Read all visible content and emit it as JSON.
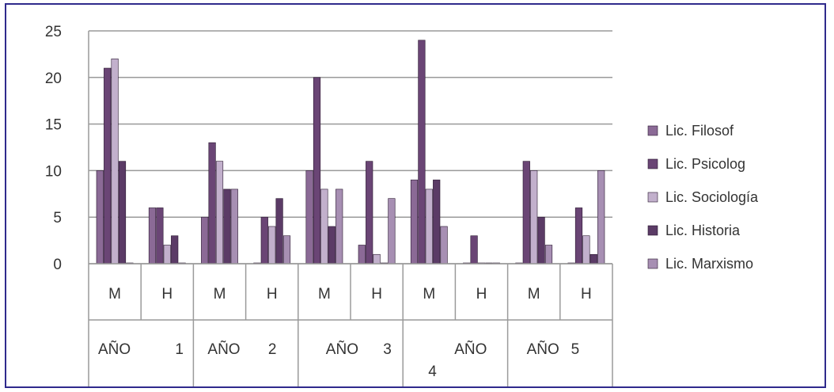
{
  "chart_data": {
    "type": "bar",
    "title": "",
    "xlabel": "",
    "ylabel": "",
    "ylim": [
      0,
      25
    ],
    "yticks": [
      0,
      5,
      10,
      15,
      20,
      25
    ],
    "grid": true,
    "legend_position": "right",
    "categories": [
      "M",
      "H",
      "M",
      "H",
      "M",
      "H",
      "M",
      "H",
      "M",
      "H"
    ],
    "groups": [
      {
        "label": "AÑO 1",
        "parts": [
          "AÑO",
          "1"
        ]
      },
      {
        "label": "AÑO 2",
        "parts": [
          "AÑO",
          "2"
        ]
      },
      {
        "label": "AÑO 3",
        "parts": [
          "AÑO",
          "3"
        ]
      },
      {
        "label": "AÑO 4",
        "parts": [
          "AÑO",
          "4"
        ]
      },
      {
        "label": "AÑO 5",
        "parts": [
          "AÑO",
          "5"
        ]
      }
    ],
    "series": [
      {
        "name": "Lic. Filosof",
        "color": "#8b6a96",
        "values": [
          10,
          6,
          5,
          0,
          10,
          2,
          9,
          0,
          0,
          0
        ]
      },
      {
        "name": "Lic. Psicolog",
        "color": "#6a4575",
        "values": [
          21,
          6,
          13,
          5,
          20,
          11,
          24,
          3,
          11,
          6
        ]
      },
      {
        "name": "Lic. Sociología",
        "color": "#c2b0cc",
        "values": [
          22,
          2,
          11,
          4,
          8,
          1,
          8,
          0,
          10,
          3
        ]
      },
      {
        "name": "Lic. Historia",
        "color": "#5b3b66",
        "values": [
          11,
          3,
          8,
          7,
          4,
          0,
          9,
          0,
          5,
          1
        ]
      },
      {
        "name": "Lic. Marxismo",
        "color": "#a78fb3",
        "values": [
          0,
          0,
          8,
          3,
          8,
          7,
          4,
          0,
          2,
          10
        ]
      }
    ]
  }
}
